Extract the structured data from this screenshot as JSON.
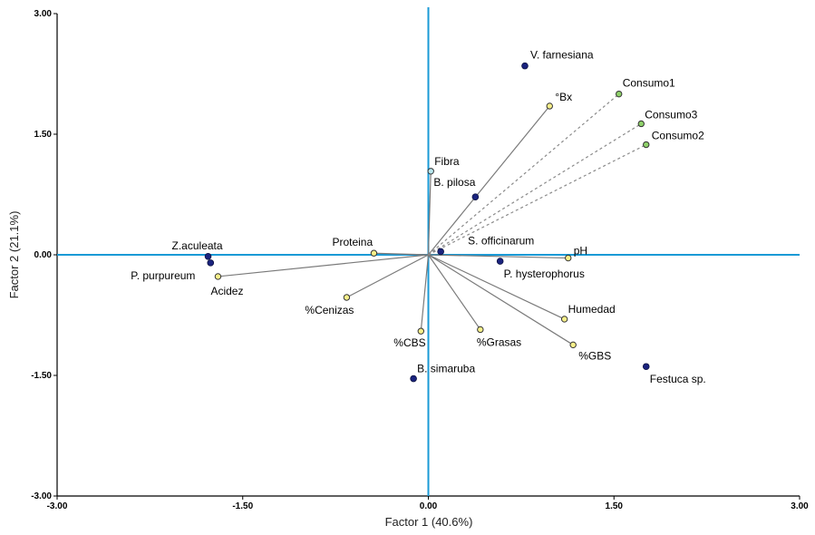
{
  "chart_data": {
    "type": "scatter",
    "subtype": "biplot",
    "xlabel": "Factor 1 (40.6%)",
    "ylabel": "Factor 2 (21.1%)",
    "xlim": [
      -3.0,
      3.0
    ],
    "ylim": [
      -3.0,
      3.0
    ],
    "xticks": [
      "-3.00",
      "-1.50",
      "0.00",
      "1.50",
      "3.00"
    ],
    "yticks": [
      "-3.00",
      "-1.50",
      "0.00",
      "1.50",
      "3.00"
    ],
    "grid": false,
    "colors": {
      "axis_lines": "#1a9ad6",
      "species": "#1a237e",
      "variables": "#f7f08a",
      "consumption": "#8fd16a",
      "fibra": "#b8e8f0",
      "vector_line": "#7a7a7a",
      "dashed_line": "#8a8a8a"
    },
    "species": [
      {
        "name": "V. farnesiana",
        "x": 0.78,
        "y": 2.35
      },
      {
        "name": "B. pilosa",
        "x": 0.38,
        "y": 0.72
      },
      {
        "name": "S. officinarum",
        "x": 0.1,
        "y": 0.04
      },
      {
        "name": "P. hysterophorus",
        "x": 0.58,
        "y": -0.08
      },
      {
        "name": "Z.aculeata",
        "x": -1.78,
        "y": -0.02
      },
      {
        "name": "P. purpureum",
        "x": -1.76,
        "y": -0.1
      },
      {
        "name": "B. simaruba",
        "x": -0.12,
        "y": -1.54
      },
      {
        "name": "Festuca sp.",
        "x": 1.76,
        "y": -1.39
      }
    ],
    "variables": [
      {
        "name": "°Bx",
        "x": 0.98,
        "y": 1.85,
        "group": "physico"
      },
      {
        "name": "Fibra",
        "x": 0.02,
        "y": 1.04,
        "group": "fibra"
      },
      {
        "name": "Proteina",
        "x": -0.44,
        "y": 0.02,
        "group": "physico"
      },
      {
        "name": "pH",
        "x": 1.13,
        "y": -0.04,
        "group": "physico"
      },
      {
        "name": "Acidez",
        "x": -1.7,
        "y": -0.27,
        "group": "physico"
      },
      {
        "name": "%Cenizas",
        "x": -0.66,
        "y": -0.53,
        "group": "physico"
      },
      {
        "name": "%CBS",
        "x": -0.06,
        "y": -0.95,
        "group": "physico"
      },
      {
        "name": "%Grasas",
        "x": 0.42,
        "y": -0.93,
        "group": "physico"
      },
      {
        "name": "Humedad",
        "x": 1.1,
        "y": -0.8,
        "group": "physico"
      },
      {
        "name": "%GBS",
        "x": 1.17,
        "y": -1.12,
        "group": "physico"
      },
      {
        "name": "Consumo1",
        "x": 1.54,
        "y": 2.0,
        "group": "consumo"
      },
      {
        "name": "Consumo3",
        "x": 1.72,
        "y": 1.63,
        "group": "consumo"
      },
      {
        "name": "Consumo2",
        "x": 1.76,
        "y": 1.37,
        "group": "consumo"
      }
    ]
  }
}
